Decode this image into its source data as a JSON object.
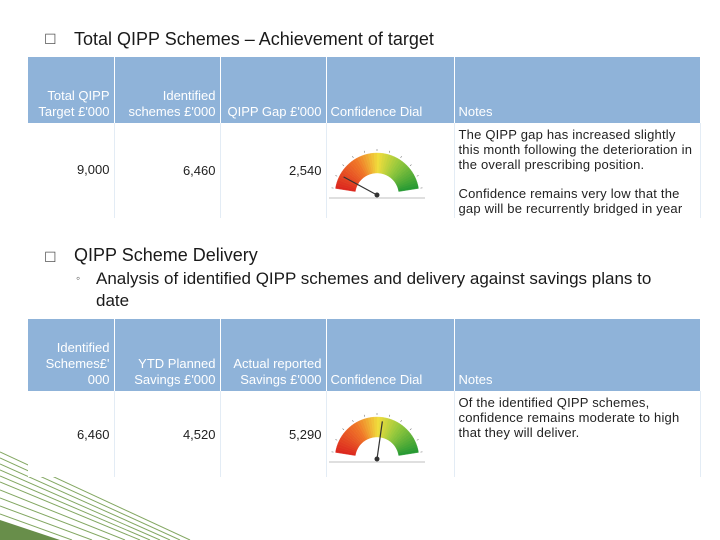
{
  "section1": {
    "bullet_icon": "box-bullet-icon",
    "heading": "Total QIPP Schemes – Achievement of target",
    "headers": [
      "Total QIPP Target £'000",
      "Identified schemes £'000",
      "QIPP Gap £'000",
      "Confidence Dial",
      "Notes"
    ],
    "row": {
      "target": "9,000",
      "identified": "6,460",
      "gap": "2,540"
    },
    "dial": {
      "level": 0.12,
      "level_note": "needle points to red/low end"
    },
    "notes": [
      "The QIPP gap has increased slightly this month following the deterioration in the overall prescribing position.",
      "Confidence remains very low that the gap will be recurrently bridged in year"
    ]
  },
  "section2": {
    "bullet_icon": "box-bullet-icon",
    "heading": "QIPP Scheme Delivery",
    "subbullet_icon": "circle-bullet-icon",
    "subheading": "Analysis of identified QIPP schemes and delivery against savings plans to date",
    "headers": [
      "Identified Schemes£' 000",
      "YTD Planned Savings £'000",
      "Actual reported Savings £'000",
      "Confidence Dial",
      "Notes"
    ],
    "row": {
      "identified": "6,460",
      "planned": "4,520",
      "actual": "5,290"
    },
    "dial": {
      "level": 0.55
    },
    "notes": [
      "Of the identified QIPP schemes, confidence remains moderate to high that they will deliver."
    ]
  },
  "colors": {
    "header_bg": "#8fb3d9",
    "corner_green": "#4e7a2a"
  }
}
